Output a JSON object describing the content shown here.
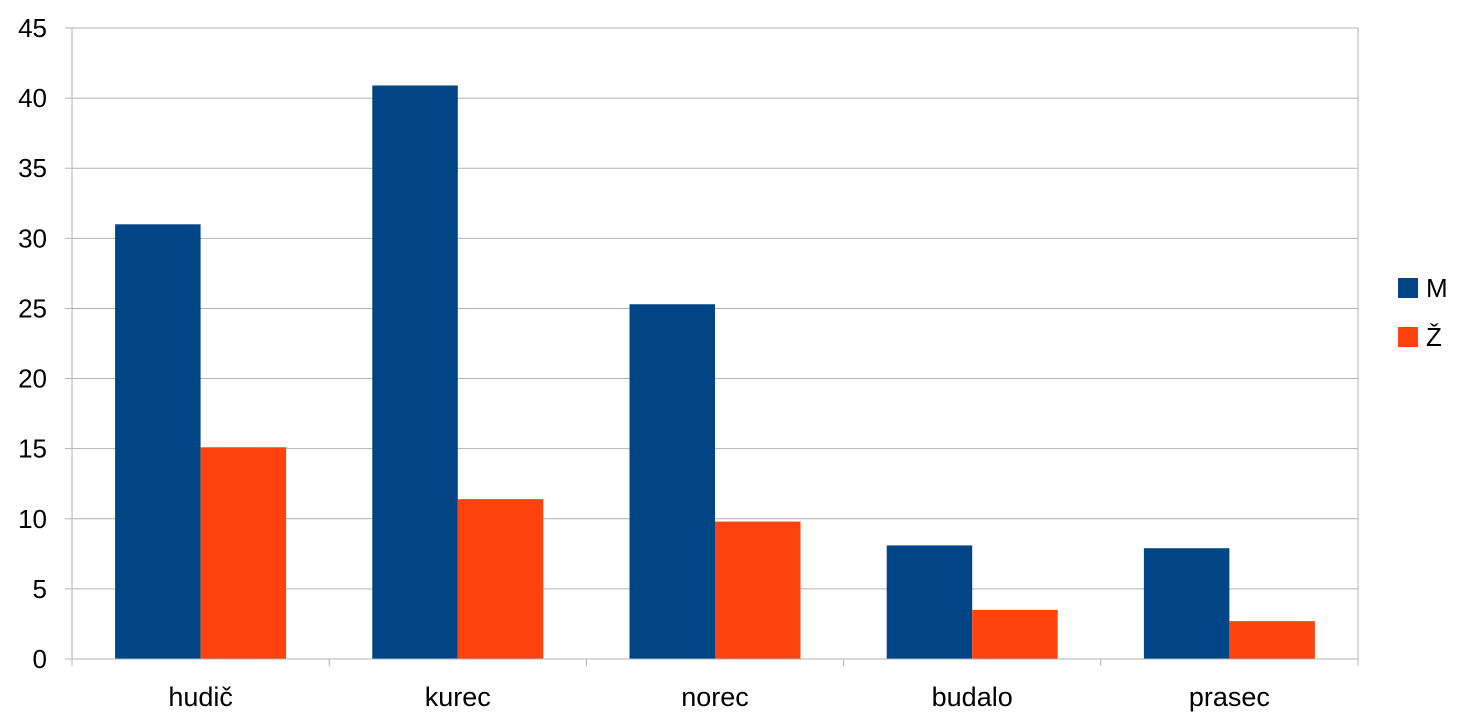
{
  "chart_data": {
    "type": "bar",
    "categories": [
      "hudič",
      "kurec",
      "norec",
      "budalo",
      "prasec"
    ],
    "series": [
      {
        "name": "M",
        "values": [
          31,
          40.9,
          25.3,
          8.1,
          7.9
        ],
        "color": "#004586"
      },
      {
        "name": "Ž",
        "values": [
          15.1,
          11.4,
          9.8,
          3.5,
          2.7
        ],
        "color": "#ff420e"
      }
    ],
    "title": "",
    "xlabel": "",
    "ylabel": "",
    "ylim": [
      0,
      45
    ],
    "yticks": [
      "0",
      "5",
      "10",
      "15",
      "20",
      "25",
      "30",
      "35",
      "40",
      "45"
    ],
    "grid": true,
    "legend": "right"
  }
}
